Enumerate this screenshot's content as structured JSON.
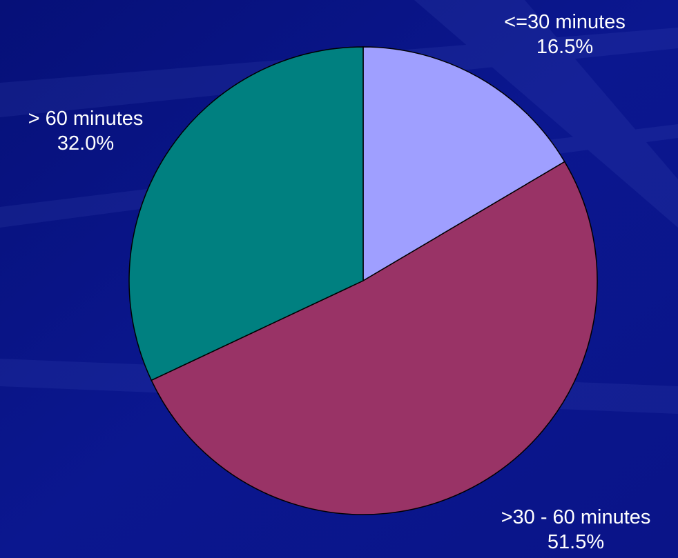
{
  "chart_data": {
    "type": "pie",
    "title": "",
    "slices": [
      {
        "label": "<=30 minutes",
        "value": 16.5,
        "value_label": "16.5%",
        "color": "#9f9fff"
      },
      {
        "label": ">30 - 60 minutes",
        "value": 51.5,
        "value_label": "51.5%",
        "color": "#993366"
      },
      {
        "label": "> 60 minutes",
        "value": 32.0,
        "value_label": "32.0%",
        "color": "#008080"
      }
    ],
    "start_angle": "12 o'clock",
    "direction": "clockwise",
    "slice_border_color": "#000000"
  },
  "theme": {
    "background": "#0a148a"
  }
}
